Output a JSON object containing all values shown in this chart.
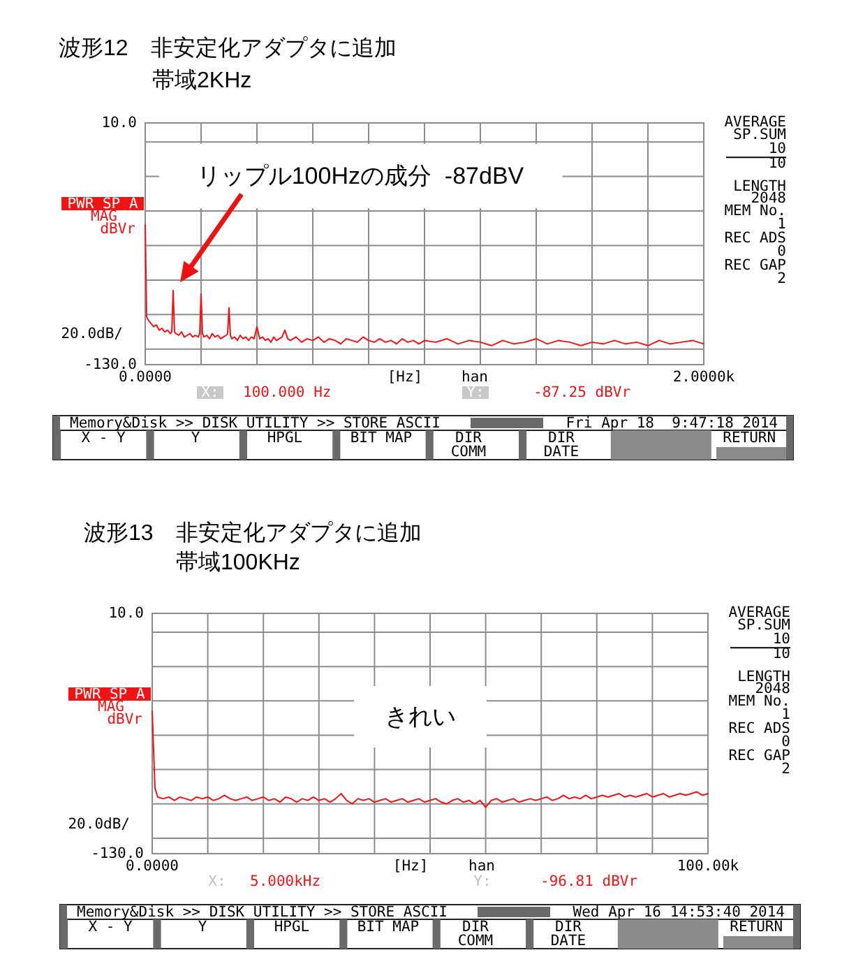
{
  "chart_data": [
    {
      "type": "line",
      "title": "波形12　非安定化アダプタに追加",
      "subtitle": "帯域2KHz",
      "xlabel": "[Hz]",
      "ylabel": "20.0dB/",
      "x": [
        0,
        5,
        10,
        20,
        30,
        40,
        50,
        60,
        70,
        80,
        90,
        95,
        100,
        105,
        110,
        120,
        130,
        140,
        150,
        160,
        170,
        180,
        190,
        195,
        200,
        205,
        210,
        220,
        230,
        240,
        250,
        260,
        270,
        280,
        290,
        295,
        300,
        305,
        310,
        320,
        330,
        340,
        350,
        360,
        370,
        380,
        390,
        400,
        410,
        420,
        430,
        440,
        450,
        460,
        470,
        480,
        490,
        500,
        510,
        520,
        540,
        560,
        580,
        600,
        620,
        640,
        660,
        680,
        700,
        720,
        740,
        760,
        780,
        800,
        820,
        840,
        860,
        880,
        900,
        920,
        940,
        960,
        980,
        1000,
        1040,
        1080,
        1120,
        1160,
        1200,
        1240,
        1280,
        1320,
        1360,
        1400,
        1440,
        1480,
        1520,
        1560,
        1600,
        1640,
        1680,
        1720,
        1760,
        1800,
        1840,
        1880,
        1920,
        1960,
        2000
      ],
      "series": [
        {
          "color": "#f01414",
          "values": [
            -49,
            -102,
            -104,
            -106,
            -108,
            -107,
            -110,
            -109,
            -111,
            -110,
            -112,
            -111,
            -87,
            -111,
            -112,
            -113,
            -111,
            -114,
            -113,
            -112,
            -114,
            -113,
            -114,
            -112,
            -89,
            -112,
            -114,
            -113,
            -115,
            -112,
            -114,
            -113,
            -115,
            -114,
            -113,
            -112,
            -97,
            -113,
            -115,
            -114,
            -116,
            -113,
            -115,
            -114,
            -116,
            -114,
            -115,
            -108,
            -115,
            -114,
            -116,
            -115,
            -117,
            -114,
            -116,
            -115,
            -114,
            -110,
            -115,
            -116,
            -114,
            -117,
            -115,
            -116,
            -114,
            -117,
            -115,
            -116,
            -118,
            -115,
            -116,
            -117,
            -114,
            -116,
            -117,
            -115,
            -117,
            -116,
            -118,
            -115,
            -117,
            -116,
            -118,
            -116,
            -117,
            -115,
            -118,
            -116,
            -117,
            -119,
            -116,
            -118,
            -117,
            -115,
            -118,
            -116,
            -117,
            -119,
            -117,
            -118,
            -116,
            -118,
            -117,
            -119,
            -116,
            -118,
            -117,
            -116,
            -118
          ]
        }
      ],
      "xlim": [
        0,
        2000
      ],
      "xticks": [
        {
          "value": 0,
          "label": "0.0000"
        },
        {
          "value": 200,
          "label": null
        },
        {
          "value": 400,
          "label": null
        },
        {
          "value": 600,
          "label": null
        },
        {
          "value": 800,
          "label": null
        },
        {
          "value": 1000,
          "label": null
        },
        {
          "value": 1200,
          "label": null
        },
        {
          "value": 1400,
          "label": null
        },
        {
          "value": 1600,
          "label": null
        },
        {
          "value": 1800,
          "label": null
        },
        {
          "value": 2000,
          "label": "2.0000k"
        }
      ],
      "ylim": [
        -130,
        10
      ],
      "yticks": [
        {
          "value": 10,
          "label": "10.0"
        },
        {
          "value": -1,
          "label": null
        },
        {
          "value": -21,
          "label": null
        },
        {
          "value": -41,
          "label": null
        },
        {
          "value": -61,
          "label": null
        },
        {
          "value": -81,
          "label": null
        },
        {
          "value": -101,
          "label": null
        },
        {
          "value": -121,
          "label": null
        },
        {
          "value": -130,
          "label": "-130.0"
        }
      ],
      "grid": true,
      "annotations": [
        "リップル100Hzの成分  -87dBV",
        "PWR SP A",
        "MAG",
        "dBVr",
        "han",
        "X:",
        "100.000 Hz",
        "Y:",
        "-87.25 dBVr",
        "AVERAGE",
        "SP.SUM",
        "10",
        "10",
        "LENGTH",
        "2048",
        "MEM No.",
        "1",
        "REC ADS",
        "0",
        "REC GAP",
        "2",
        "Memory&Disk >> DISK UTILITY >> STORE ASCII",
        "Fri Apr 18  9:47:18 2014",
        "X - Y",
        "Y",
        "HPGL",
        "BIT MAP",
        "DIR\nCOMM",
        "DIR\nDATE",
        "RETURN"
      ]
    },
    {
      "type": "line",
      "title": "波形13　非安定化アダプタに追加",
      "subtitle": "帯域100KHz",
      "xlabel": "[Hz]",
      "ylabel": "20.0dB/",
      "x": [
        0,
        500,
        1000,
        2000,
        3000,
        4000,
        5000,
        6000,
        7000,
        8000,
        9000,
        10000,
        11000,
        12000,
        13000,
        14000,
        15000,
        16000,
        17000,
        18000,
        19000,
        20000,
        21000,
        22000,
        23000,
        24000,
        25000,
        26000,
        27000,
        28000,
        29000,
        30000,
        31000,
        32000,
        33000,
        34000,
        35000,
        36000,
        37000,
        38000,
        39000,
        40000,
        41000,
        42000,
        43000,
        44000,
        45000,
        46000,
        47000,
        48000,
        49000,
        50000,
        51000,
        52000,
        53000,
        54000,
        55000,
        56000,
        57000,
        58000,
        59000,
        60000,
        61000,
        62000,
        63000,
        64000,
        65000,
        66000,
        67000,
        68000,
        69000,
        70000,
        71000,
        72000,
        73000,
        74000,
        75000,
        76000,
        77000,
        78000,
        79000,
        80000,
        81000,
        82000,
        83000,
        84000,
        85000,
        86000,
        87000,
        88000,
        89000,
        90000,
        91000,
        92000,
        93000,
        94000,
        95000,
        96000,
        97000,
        98000,
        99000,
        100000
      ],
      "series": [
        {
          "color": "#f01414",
          "values": [
            -47,
            -92,
            -97,
            -98,
            -97,
            -99,
            -97,
            -98,
            -99,
            -97,
            -98,
            -97,
            -99,
            -98,
            -96,
            -98,
            -99,
            -98,
            -97,
            -99,
            -98,
            -97,
            -99,
            -98,
            -100,
            -97,
            -98,
            -100,
            -98,
            -99,
            -97,
            -99,
            -98,
            -100,
            -98,
            -95,
            -99,
            -101,
            -98,
            -99,
            -98,
            -100,
            -99,
            -98,
            -100,
            -99,
            -98,
            -100,
            -99,
            -98,
            -100,
            -99,
            -98,
            -100,
            -101,
            -99,
            -98,
            -100,
            -99,
            -101,
            -99,
            -103,
            -99,
            -98,
            -100,
            -99,
            -98,
            -100,
            -99,
            -98,
            -99,
            -98,
            -97,
            -99,
            -98,
            -96,
            -98,
            -97,
            -98,
            -96,
            -98,
            -97,
            -96,
            -97,
            -96,
            -95,
            -97,
            -96,
            -97,
            -96,
            -95,
            -97,
            -96,
            -95,
            -97,
            -96,
            -95,
            -96,
            -95,
            -94,
            -96,
            -95
          ]
        }
      ],
      "xlim": [
        0,
        100000
      ],
      "xticks": [
        {
          "value": 0,
          "label": "0.0000"
        },
        {
          "value": 10000,
          "label": null
        },
        {
          "value": 20000,
          "label": null
        },
        {
          "value": 30000,
          "label": null
        },
        {
          "value": 40000,
          "label": null
        },
        {
          "value": 50000,
          "label": null
        },
        {
          "value": 60000,
          "label": null
        },
        {
          "value": 70000,
          "label": null
        },
        {
          "value": 80000,
          "label": null
        },
        {
          "value": 90000,
          "label": null
        },
        {
          "value": 100000,
          "label": "100.00k"
        }
      ],
      "ylim": [
        -130,
        10
      ],
      "yticks": [
        {
          "value": 10,
          "label": "10.0"
        },
        {
          "value": -1,
          "label": null
        },
        {
          "value": -21,
          "label": null
        },
        {
          "value": -41,
          "label": null
        },
        {
          "value": -61,
          "label": null
        },
        {
          "value": -81,
          "label": null
        },
        {
          "value": -101,
          "label": null
        },
        {
          "value": -121,
          "label": null
        },
        {
          "value": -130,
          "label": "-130.0"
        }
      ],
      "grid": true,
      "annotations": [
        "きれい",
        "PWR SP A",
        "MAG",
        "dBVr",
        "han",
        "X:",
        "5.000kHz",
        "Y:",
        "-96.81 dBVr",
        "AVERAGE",
        "SP.SUM",
        "10",
        "10",
        "LENGTH",
        "2048",
        "MEM No.",
        "1",
        "REC ADS",
        "0",
        "REC GAP",
        "2",
        "Memory&Disk >> DISK UTILITY >> STORE ASCII",
        "Wed Apr 16 14:53:40 2014",
        "X - Y",
        "Y",
        "HPGL",
        "BIT MAP",
        "DIR\nCOMM",
        "DIR\nDATE",
        "RETURN"
      ]
    }
  ]
}
